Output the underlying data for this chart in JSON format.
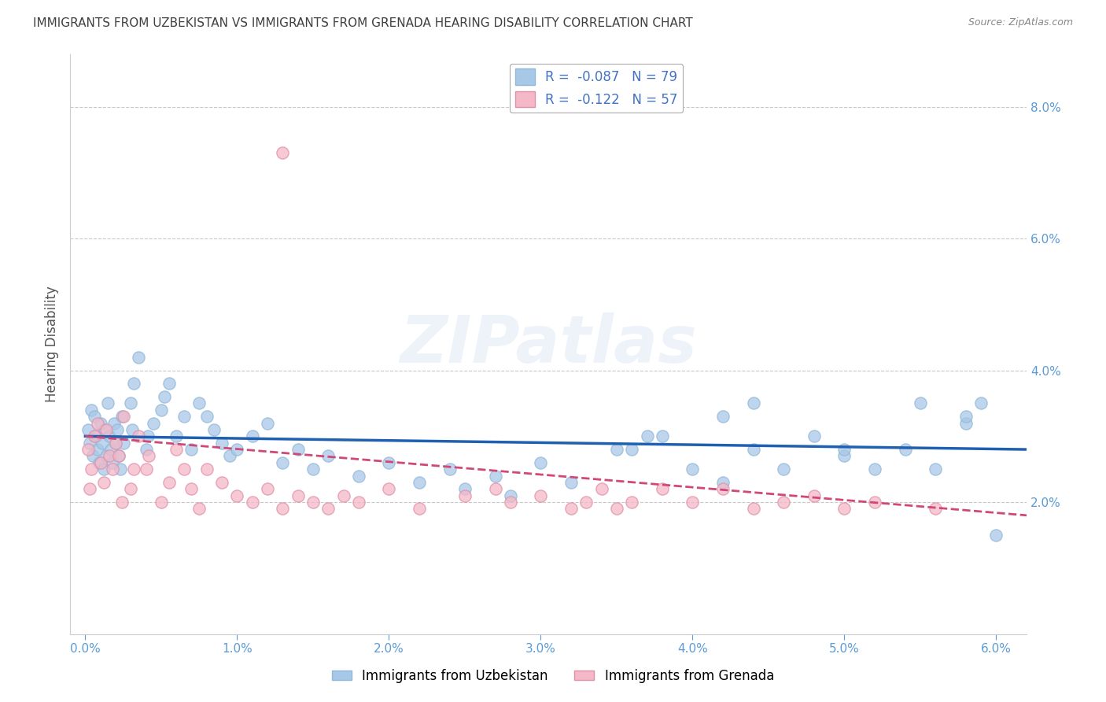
{
  "title": "IMMIGRANTS FROM UZBEKISTAN VS IMMIGRANTS FROM GRENADA HEARING DISABILITY CORRELATION CHART",
  "source": "Source: ZipAtlas.com",
  "ylabel": "Hearing Disability",
  "legend_label1": "Immigrants from Uzbekistan",
  "legend_label2": "Immigrants from Grenada",
  "R1": -0.087,
  "N1": 79,
  "R2": -0.122,
  "N2": 57,
  "xlim": [
    -0.001,
    0.062
  ],
  "ylim": [
    0.0,
    0.088
  ],
  "yticks_right": [
    0.02,
    0.04,
    0.06,
    0.08
  ],
  "ytick_labels_right": [
    "2.0%",
    "4.0%",
    "6.0%",
    "8.0%"
  ],
  "xtick_labels": [
    "0.0%",
    "1.0%",
    "2.0%",
    "3.0%",
    "4.0%",
    "5.0%",
    "6.0%"
  ],
  "xticks": [
    0.0,
    0.01,
    0.02,
    0.03,
    0.04,
    0.05,
    0.06
  ],
  "color_blue": "#a8c8e8",
  "color_pink": "#f4b8c8",
  "trendline_blue": "#2060b0",
  "trendline_pink": "#d04878",
  "background": "#ffffff",
  "grid_color": "#c8c8c8",
  "title_color": "#404040",
  "axis_label_color": "#5b9bd5",
  "watermark": "ZIPatlas",
  "uz_x": [
    0.0002,
    0.0003,
    0.0004,
    0.0005,
    0.0006,
    0.0007,
    0.0008,
    0.0009,
    0.001,
    0.0011,
    0.0012,
    0.0013,
    0.0014,
    0.0015,
    0.0016,
    0.0017,
    0.0018,
    0.0019,
    0.002,
    0.0021,
    0.0022,
    0.0023,
    0.0024,
    0.0025,
    0.003,
    0.0031,
    0.0032,
    0.0035,
    0.004,
    0.0041,
    0.0045,
    0.005,
    0.0052,
    0.0055,
    0.006,
    0.0065,
    0.007,
    0.0075,
    0.008,
    0.0085,
    0.009,
    0.0095,
    0.01,
    0.011,
    0.012,
    0.013,
    0.014,
    0.015,
    0.016,
    0.018,
    0.02,
    0.022,
    0.024,
    0.025,
    0.027,
    0.028,
    0.03,
    0.032,
    0.035,
    0.037,
    0.04,
    0.042,
    0.044,
    0.046,
    0.048,
    0.05,
    0.052,
    0.054,
    0.056,
    0.058,
    0.05,
    0.044,
    0.042,
    0.055,
    0.038,
    0.036,
    0.06,
    0.059,
    0.058
  ],
  "uz_y": [
    0.031,
    0.029,
    0.034,
    0.027,
    0.033,
    0.03,
    0.028,
    0.026,
    0.032,
    0.029,
    0.025,
    0.031,
    0.027,
    0.035,
    0.03,
    0.028,
    0.026,
    0.032,
    0.029,
    0.031,
    0.027,
    0.025,
    0.033,
    0.029,
    0.035,
    0.031,
    0.038,
    0.042,
    0.028,
    0.03,
    0.032,
    0.034,
    0.036,
    0.038,
    0.03,
    0.033,
    0.028,
    0.035,
    0.033,
    0.031,
    0.029,
    0.027,
    0.028,
    0.03,
    0.032,
    0.026,
    0.028,
    0.025,
    0.027,
    0.024,
    0.026,
    0.023,
    0.025,
    0.022,
    0.024,
    0.021,
    0.026,
    0.023,
    0.028,
    0.03,
    0.025,
    0.023,
    0.028,
    0.025,
    0.03,
    0.027,
    0.025,
    0.028,
    0.025,
    0.032,
    0.028,
    0.035,
    0.033,
    0.035,
    0.03,
    0.028,
    0.015,
    0.035,
    0.033
  ],
  "gr_x": [
    0.0002,
    0.0003,
    0.0004,
    0.0006,
    0.0008,
    0.001,
    0.0012,
    0.0014,
    0.0016,
    0.0018,
    0.002,
    0.0022,
    0.0024,
    0.0025,
    0.003,
    0.0032,
    0.0035,
    0.004,
    0.0042,
    0.005,
    0.0055,
    0.006,
    0.0065,
    0.007,
    0.0075,
    0.008,
    0.009,
    0.01,
    0.011,
    0.012,
    0.013,
    0.014,
    0.015,
    0.016,
    0.017,
    0.018,
    0.02,
    0.022,
    0.025,
    0.027,
    0.028,
    0.03,
    0.032,
    0.033,
    0.034,
    0.035,
    0.036,
    0.038,
    0.04,
    0.042,
    0.044,
    0.046,
    0.048,
    0.05,
    0.052,
    0.056,
    0.013
  ],
  "gr_y": [
    0.028,
    0.022,
    0.025,
    0.03,
    0.032,
    0.026,
    0.023,
    0.031,
    0.027,
    0.025,
    0.029,
    0.027,
    0.02,
    0.033,
    0.022,
    0.025,
    0.03,
    0.025,
    0.027,
    0.02,
    0.023,
    0.028,
    0.025,
    0.022,
    0.019,
    0.025,
    0.023,
    0.021,
    0.02,
    0.022,
    0.019,
    0.021,
    0.02,
    0.019,
    0.021,
    0.02,
    0.022,
    0.019,
    0.021,
    0.022,
    0.02,
    0.021,
    0.019,
    0.02,
    0.022,
    0.019,
    0.02,
    0.022,
    0.02,
    0.022,
    0.019,
    0.02,
    0.021,
    0.019,
    0.02,
    0.019,
    0.073
  ],
  "trend_uz_x0": 0.0,
  "trend_uz_x1": 0.062,
  "trend_uz_y0": 0.03,
  "trend_uz_y1": 0.028,
  "trend_gr_x0": 0.0,
  "trend_gr_x1": 0.062,
  "trend_gr_y0": 0.03,
  "trend_gr_y1": 0.018
}
